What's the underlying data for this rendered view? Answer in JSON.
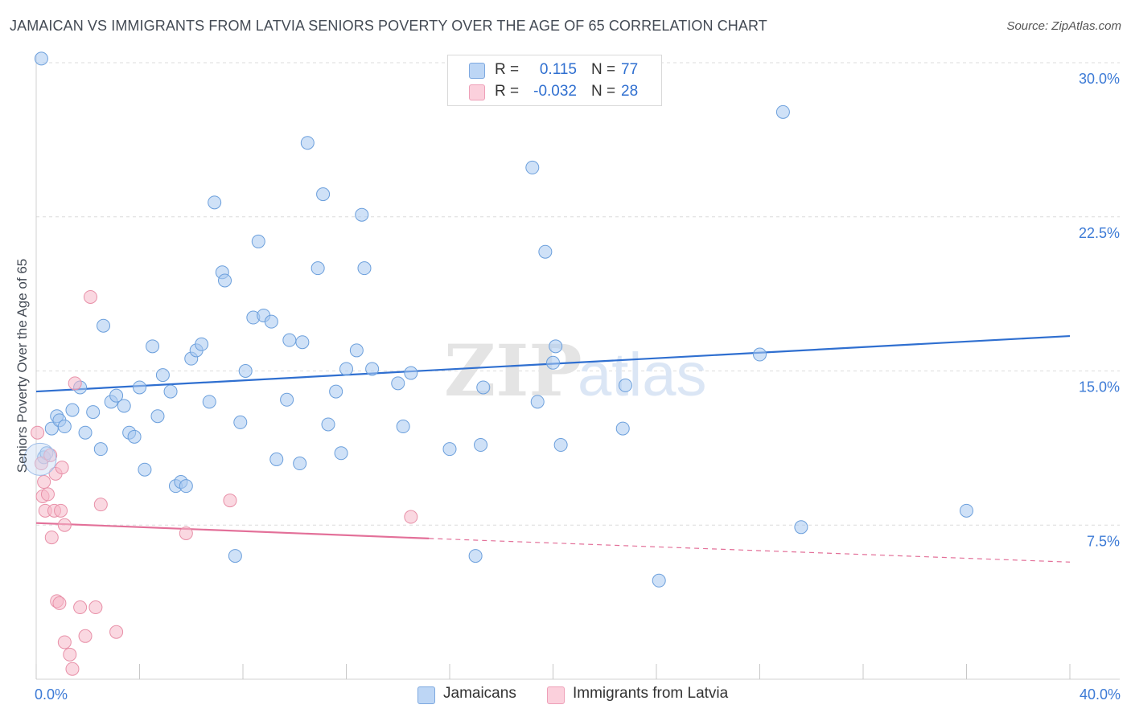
{
  "title": "JAMAICAN VS IMMIGRANTS FROM LATVIA SENIORS POVERTY OVER THE AGE OF 65 CORRELATION CHART",
  "source": "Source: ZipAtlas.com",
  "watermark": {
    "zip": "ZIP",
    "atlas": "atlas"
  },
  "stats": [
    {
      "r_label": "R =",
      "r_value": "0.115",
      "n_label": "N =",
      "n_value": "77",
      "color": "#a8c8f0"
    },
    {
      "r_label": "R =",
      "r_value": "-0.032",
      "n_label": "N =",
      "n_value": "28",
      "color": "#f5b8c8"
    }
  ],
  "chart_data": {
    "type": "scatter",
    "title": "JAMAICAN VS IMMIGRANTS FROM LATVIA SENIORS POVERTY OVER THE AGE OF 65 CORRELATION CHART",
    "xlabel": "",
    "ylabel": "Seniors Poverty Over the Age of 65",
    "xlim": [
      0,
      40
    ],
    "ylim": [
      0,
      30
    ],
    "x_tick_labels": [
      "0.0%",
      "40.0%"
    ],
    "y_ticks": [
      7.5,
      15.0,
      22.5,
      30.0
    ],
    "y_tick_labels": [
      "7.5%",
      "15.0%",
      "22.5%",
      "30.0%"
    ],
    "grid": "horizontal dashed",
    "legend_position": "bottom-center",
    "series": [
      {
        "name": "Jamaicans",
        "color": "#a8c8f0",
        "stroke": "#6b9fdc",
        "trend_color": "#2f6fd0",
        "trend": {
          "x": [
            0,
            40
          ],
          "y": [
            14.0,
            16.7
          ]
        },
        "points": [
          [
            0.3,
            10.8
          ],
          [
            0.4,
            11.0
          ],
          [
            0.6,
            12.2
          ],
          [
            0.8,
            12.8
          ],
          [
            0.9,
            12.6
          ],
          [
            1.1,
            12.3
          ],
          [
            1.4,
            13.1
          ],
          [
            1.7,
            14.2
          ],
          [
            1.9,
            12.0
          ],
          [
            2.2,
            13.0
          ],
          [
            2.5,
            11.2
          ],
          [
            2.6,
            17.2
          ],
          [
            2.9,
            13.5
          ],
          [
            3.1,
            13.8
          ],
          [
            3.4,
            13.3
          ],
          [
            3.6,
            12.0
          ],
          [
            3.8,
            11.8
          ],
          [
            4.0,
            14.2
          ],
          [
            4.2,
            10.2
          ],
          [
            4.5,
            16.2
          ],
          [
            4.7,
            12.8
          ],
          [
            4.9,
            14.8
          ],
          [
            5.2,
            14.0
          ],
          [
            5.4,
            9.4
          ],
          [
            5.6,
            9.6
          ],
          [
            5.8,
            9.4
          ],
          [
            6.0,
            15.6
          ],
          [
            6.2,
            16.0
          ],
          [
            6.4,
            16.3
          ],
          [
            6.7,
            13.5
          ],
          [
            6.9,
            23.2
          ],
          [
            7.2,
            19.8
          ],
          [
            7.3,
            19.4
          ],
          [
            7.7,
            6.0
          ],
          [
            7.9,
            12.5
          ],
          [
            8.1,
            15.0
          ],
          [
            8.4,
            17.6
          ],
          [
            8.6,
            21.3
          ],
          [
            8.8,
            17.7
          ],
          [
            9.1,
            17.4
          ],
          [
            9.3,
            10.7
          ],
          [
            9.7,
            13.6
          ],
          [
            9.8,
            16.5
          ],
          [
            10.2,
            10.5
          ],
          [
            10.3,
            16.4
          ],
          [
            10.5,
            26.1
          ],
          [
            10.9,
            20.0
          ],
          [
            11.1,
            23.6
          ],
          [
            11.3,
            12.4
          ],
          [
            11.6,
            14.0
          ],
          [
            11.8,
            11.0
          ],
          [
            12.0,
            15.1
          ],
          [
            12.4,
            16.0
          ],
          [
            12.6,
            22.6
          ],
          [
            12.7,
            20.0
          ],
          [
            13.0,
            15.1
          ],
          [
            14.0,
            14.4
          ],
          [
            14.2,
            12.3
          ],
          [
            14.5,
            14.9
          ],
          [
            16.0,
            11.2
          ],
          [
            17.0,
            6.0
          ],
          [
            17.2,
            11.4
          ],
          [
            17.3,
            14.2
          ],
          [
            19.2,
            24.9
          ],
          [
            19.4,
            13.5
          ],
          [
            19.7,
            20.8
          ],
          [
            20.0,
            15.4
          ],
          [
            20.1,
            16.2
          ],
          [
            20.3,
            11.4
          ],
          [
            22.7,
            12.2
          ],
          [
            22.8,
            14.3
          ],
          [
            24.1,
            4.8
          ],
          [
            28.0,
            15.8
          ],
          [
            28.9,
            27.6
          ],
          [
            29.6,
            7.4
          ],
          [
            36.0,
            8.2
          ],
          [
            0.2,
            30.2
          ]
        ]
      },
      {
        "name": "Immigrants from Latvia",
        "color": "#f5b8c8",
        "stroke": "#e890a8",
        "trend_color": "#e37099",
        "trend": {
          "x": [
            0,
            15.2
          ],
          "y": [
            7.6,
            6.85
          ]
        },
        "trend_ext": {
          "x": [
            15.2,
            40
          ],
          "y": [
            6.85,
            5.7
          ]
        },
        "points": [
          [
            0.05,
            12.0
          ],
          [
            0.2,
            10.5
          ],
          [
            0.25,
            8.9
          ],
          [
            0.3,
            9.6
          ],
          [
            0.35,
            8.2
          ],
          [
            0.45,
            9.0
          ],
          [
            0.55,
            10.9
          ],
          [
            0.6,
            6.9
          ],
          [
            0.7,
            8.2
          ],
          [
            0.75,
            10.0
          ],
          [
            0.8,
            3.8
          ],
          [
            0.9,
            3.7
          ],
          [
            0.95,
            8.2
          ],
          [
            1.0,
            10.3
          ],
          [
            1.1,
            7.5
          ],
          [
            1.1,
            1.8
          ],
          [
            1.3,
            1.2
          ],
          [
            1.4,
            0.5
          ],
          [
            1.5,
            14.4
          ],
          [
            1.7,
            3.5
          ],
          [
            1.9,
            2.1
          ],
          [
            2.3,
            3.5
          ],
          [
            2.5,
            8.5
          ],
          [
            2.1,
            18.6
          ],
          [
            3.1,
            2.3
          ],
          [
            5.8,
            7.1
          ],
          [
            7.5,
            8.7
          ],
          [
            14.5,
            7.9
          ]
        ]
      }
    ]
  },
  "legend": [
    {
      "label": "Jamaicans",
      "color": "#a8c8f0"
    },
    {
      "label": "Immigrants from Latvia",
      "color": "#f5b8c8"
    }
  ]
}
